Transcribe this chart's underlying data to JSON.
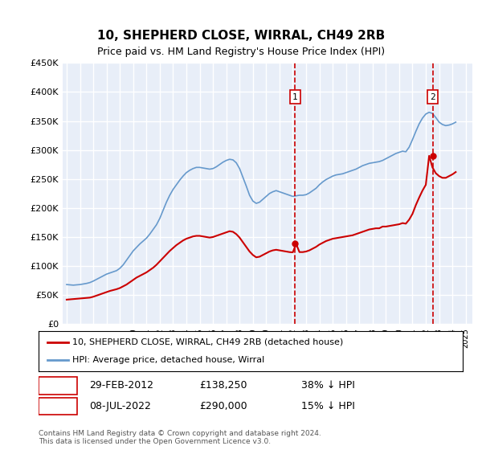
{
  "title": "10, SHEPHERD CLOSE, WIRRAL, CH49 2RB",
  "subtitle": "Price paid vs. HM Land Registry's House Price Index (HPI)",
  "ylabel_ticks": [
    "£0",
    "£50K",
    "£100K",
    "£150K",
    "£200K",
    "£250K",
    "£300K",
    "£350K",
    "£400K",
    "£450K"
  ],
  "ylim": [
    0,
    450000
  ],
  "xlim_start": 1995.0,
  "xlim_end": 2025.5,
  "background_color": "#e8eef8",
  "plot_bg_color": "#e8eef8",
  "grid_color": "#ffffff",
  "line1_color": "#cc0000",
  "line2_color": "#6699cc",
  "vline_color": "#cc0000",
  "marker1_x": 2012.17,
  "marker2_x": 2022.52,
  "marker1_price": 138250,
  "marker2_price": 290000,
  "legend_line1": "10, SHEPHERD CLOSE, WIRRAL, CH49 2RB (detached house)",
  "legend_line2": "HPI: Average price, detached house, Wirral",
  "table_row1": [
    "1",
    "29-FEB-2012",
    "£138,250",
    "38% ↓ HPI"
  ],
  "table_row2": [
    "2",
    "08-JUL-2022",
    "£290,000",
    "15% ↓ HPI"
  ],
  "footer": "Contains HM Land Registry data © Crown copyright and database right 2024.\nThis data is licensed under the Open Government Licence v3.0.",
  "hpi_years": [
    1995.0,
    1995.25,
    1995.5,
    1995.75,
    1996.0,
    1996.25,
    1996.5,
    1996.75,
    1997.0,
    1997.25,
    1997.5,
    1997.75,
    1998.0,
    1998.25,
    1998.5,
    1998.75,
    1999.0,
    1999.25,
    1999.5,
    1999.75,
    2000.0,
    2000.25,
    2000.5,
    2000.75,
    2001.0,
    2001.25,
    2001.5,
    2001.75,
    2002.0,
    2002.25,
    2002.5,
    2002.75,
    2003.0,
    2003.25,
    2003.5,
    2003.75,
    2004.0,
    2004.25,
    2004.5,
    2004.75,
    2005.0,
    2005.25,
    2005.5,
    2005.75,
    2006.0,
    2006.25,
    2006.5,
    2006.75,
    2007.0,
    2007.25,
    2007.5,
    2007.75,
    2008.0,
    2008.25,
    2008.5,
    2008.75,
    2009.0,
    2009.25,
    2009.5,
    2009.75,
    2010.0,
    2010.25,
    2010.5,
    2010.75,
    2011.0,
    2011.25,
    2011.5,
    2011.75,
    2012.0,
    2012.25,
    2012.5,
    2012.75,
    2013.0,
    2013.25,
    2013.5,
    2013.75,
    2014.0,
    2014.25,
    2014.5,
    2014.75,
    2015.0,
    2015.25,
    2015.5,
    2015.75,
    2016.0,
    2016.25,
    2016.5,
    2016.75,
    2017.0,
    2017.25,
    2017.5,
    2017.75,
    2018.0,
    2018.25,
    2018.5,
    2018.75,
    2019.0,
    2019.25,
    2019.5,
    2019.75,
    2020.0,
    2020.25,
    2020.5,
    2020.75,
    2021.0,
    2021.25,
    2021.5,
    2021.75,
    2022.0,
    2022.25,
    2022.5,
    2022.75,
    2023.0,
    2023.25,
    2023.5,
    2023.75,
    2024.0,
    2024.25
  ],
  "hpi_values": [
    68000,
    67500,
    67000,
    67500,
    68000,
    69000,
    70000,
    71500,
    74000,
    77000,
    80000,
    83000,
    86000,
    88000,
    90000,
    92000,
    96000,
    102000,
    110000,
    118000,
    126000,
    132000,
    138000,
    143000,
    148000,
    155000,
    163000,
    171000,
    182000,
    196000,
    210000,
    222000,
    232000,
    240000,
    248000,
    255000,
    261000,
    265000,
    268000,
    270000,
    270000,
    269000,
    268000,
    267000,
    268000,
    271000,
    275000,
    279000,
    282000,
    284000,
    283000,
    278000,
    268000,
    253000,
    238000,
    222000,
    212000,
    208000,
    210000,
    215000,
    220000,
    225000,
    228000,
    230000,
    228000,
    226000,
    224000,
    222000,
    220000,
    221000,
    222000,
    222000,
    223000,
    226000,
    230000,
    234000,
    240000,
    245000,
    249000,
    252000,
    255000,
    257000,
    258000,
    259000,
    261000,
    263000,
    265000,
    267000,
    270000,
    273000,
    275000,
    277000,
    278000,
    279000,
    280000,
    282000,
    285000,
    288000,
    291000,
    294000,
    296000,
    298000,
    297000,
    305000,
    318000,
    332000,
    345000,
    355000,
    362000,
    365000,
    363000,
    356000,
    348000,
    344000,
    342000,
    343000,
    345000,
    348000
  ],
  "prop_years": [
    1995.0,
    1995.25,
    1995.5,
    1995.75,
    1996.0,
    1996.25,
    1996.5,
    1996.75,
    1997.0,
    1997.25,
    1997.5,
    1997.75,
    1998.0,
    1998.25,
    1998.5,
    1998.75,
    1999.0,
    1999.25,
    1999.5,
    1999.75,
    2000.0,
    2000.25,
    2000.5,
    2000.75,
    2001.0,
    2001.25,
    2001.5,
    2001.75,
    2002.0,
    2002.25,
    2002.5,
    2002.75,
    2003.0,
    2003.25,
    2003.5,
    2003.75,
    2004.0,
    2004.25,
    2004.5,
    2004.75,
    2005.0,
    2005.25,
    2005.5,
    2005.75,
    2006.0,
    2006.25,
    2006.5,
    2006.75,
    2007.0,
    2007.25,
    2007.5,
    2007.75,
    2008.0,
    2008.25,
    2008.5,
    2008.75,
    2009.0,
    2009.25,
    2009.5,
    2009.75,
    2010.0,
    2010.25,
    2010.5,
    2010.75,
    2011.0,
    2011.25,
    2011.5,
    2011.75,
    2012.0,
    2012.25,
    2012.5,
    2012.75,
    2013.0,
    2013.25,
    2013.5,
    2013.75,
    2014.0,
    2014.25,
    2014.5,
    2014.75,
    2015.0,
    2015.25,
    2015.5,
    2015.75,
    2016.0,
    2016.25,
    2016.5,
    2016.75,
    2017.0,
    2017.25,
    2017.5,
    2017.75,
    2018.0,
    2018.25,
    2018.5,
    2018.75,
    2019.0,
    2019.25,
    2019.5,
    2019.75,
    2020.0,
    2020.25,
    2020.5,
    2020.75,
    2021.0,
    2021.25,
    2021.5,
    2021.75,
    2022.0,
    2022.25,
    2022.5,
    2022.75,
    2023.0,
    2023.25,
    2023.5,
    2023.75,
    2024.0,
    2024.25
  ],
  "prop_values": [
    42000,
    42500,
    43000,
    43500,
    44000,
    44500,
    45000,
    45500,
    47000,
    49000,
    51000,
    53000,
    55000,
    57000,
    58500,
    60000,
    62000,
    65000,
    68000,
    72000,
    76000,
    80000,
    83000,
    86000,
    89000,
    93000,
    97000,
    102000,
    108000,
    114000,
    120000,
    126000,
    131000,
    136000,
    140000,
    144000,
    147000,
    149000,
    151000,
    152000,
    152000,
    151000,
    150000,
    149000,
    150000,
    152000,
    154000,
    156000,
    158000,
    160000,
    159000,
    155000,
    149000,
    141000,
    133000,
    125000,
    119000,
    115000,
    116000,
    119000,
    122000,
    125000,
    127000,
    128000,
    127000,
    126000,
    125000,
    124000,
    123500,
    138250,
    124000,
    124000,
    125000,
    127000,
    130000,
    133000,
    137000,
    140000,
    143000,
    145000,
    147000,
    148000,
    149000,
    150000,
    151000,
    152000,
    153000,
    155000,
    157000,
    159000,
    161000,
    163000,
    164000,
    165000,
    165000,
    168000,
    168000,
    169000,
    170000,
    171000,
    172000,
    174000,
    173000,
    180000,
    190000,
    205000,
    218000,
    230000,
    240000,
    290000,
    270000,
    260000,
    255000,
    252000,
    252000,
    255000,
    258000,
    262000
  ]
}
